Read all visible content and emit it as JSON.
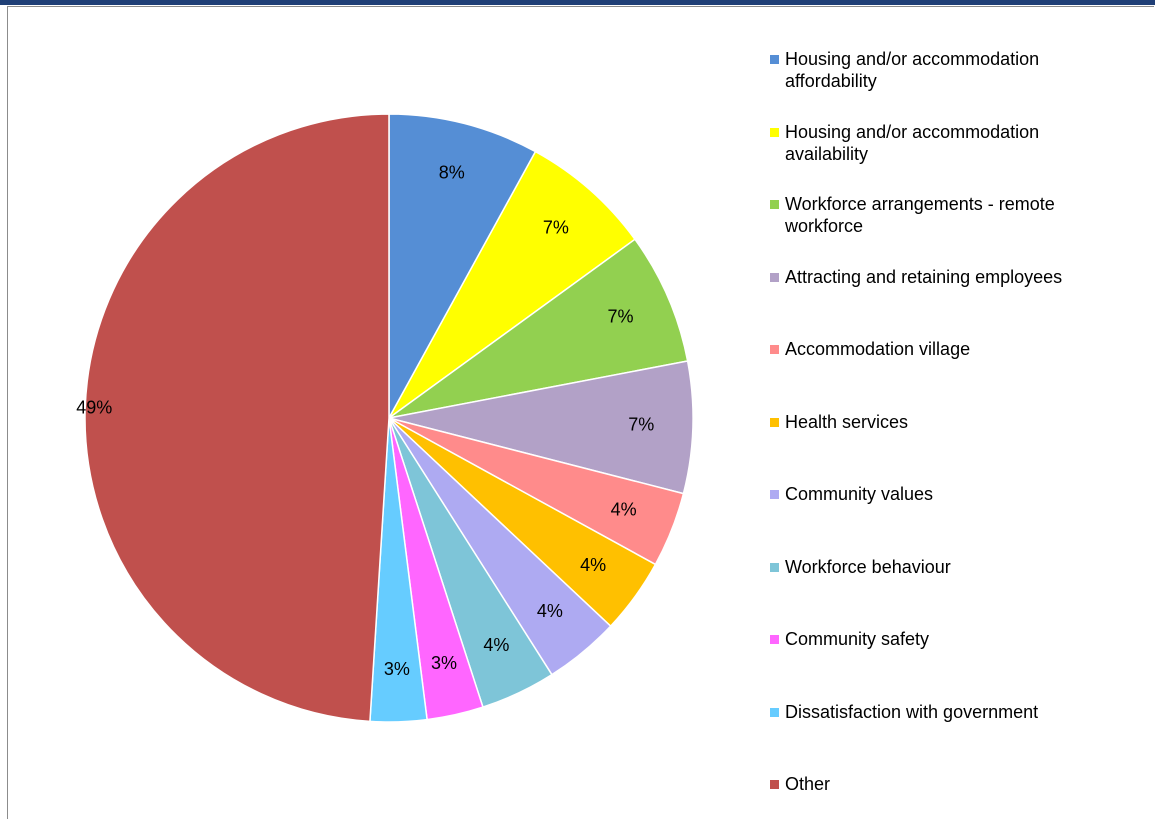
{
  "chart_data": {
    "type": "pie",
    "start_angle_deg": 0,
    "direction": "clockwise",
    "legend_position": "right",
    "slices": [
      {
        "label": "Housing and/or accommodation affordability",
        "value": 8,
        "value_label": "8%",
        "color": "#558ed5"
      },
      {
        "label": "Housing and/or accommodation availability",
        "value": 7,
        "value_label": "7%",
        "color": "#ffff00"
      },
      {
        "label": "Workforce arrangements - remote workforce",
        "value": 7,
        "value_label": "7%",
        "color": "#92d050"
      },
      {
        "label": "Attracting and retaining employees",
        "value": 7,
        "value_label": "7%",
        "color": "#b2a1c7"
      },
      {
        "label": "Accommodation village",
        "value": 4,
        "value_label": "4%",
        "color": "#ff8b8b"
      },
      {
        "label": "Health services",
        "value": 4,
        "value_label": "4%",
        "color": "#ffc000"
      },
      {
        "label": "Community values",
        "value": 4,
        "value_label": "4%",
        "color": "#aeaaf2"
      },
      {
        "label": "Workforce behaviour",
        "value": 4,
        "value_label": "4%",
        "color": "#7ec5d8"
      },
      {
        "label": "Community safety",
        "value": 3,
        "value_label": "3%",
        "color": "#ff66ff"
      },
      {
        "label": "Dissatisfaction with government",
        "value": 3,
        "value_label": "3%",
        "color": "#66ccff"
      },
      {
        "label": "Other",
        "value": 49,
        "value_label": "49%",
        "color": "#c0504d"
      }
    ]
  }
}
